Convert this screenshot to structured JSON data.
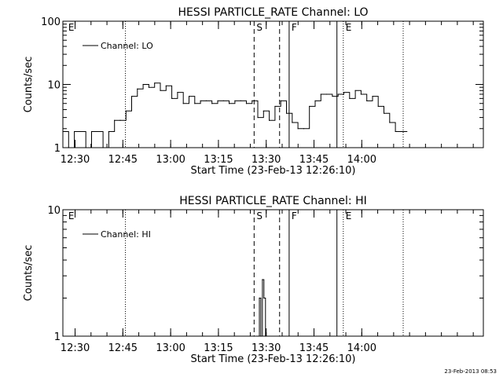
{
  "footer": {
    "stamp": "23-Feb-2013 08:53"
  },
  "chart_data": [
    {
      "type": "line",
      "title": "HESSI PARTICLE_RATE Channel: LO",
      "xlabel": "Start Time (23-Feb-13 12:26:10)",
      "ylabel": "Counts/sec",
      "yscale": "log",
      "xlim": [
        0,
        2.2
      ],
      "ylim": [
        1,
        100
      ],
      "xticks": [
        0.0639,
        0.3139,
        0.5639,
        0.8139,
        1.0639,
        1.3139,
        1.5639
      ],
      "xtick_labels": [
        "12:30",
        "12:45",
        "13:00",
        "13:15",
        "13:30",
        "13:45",
        "14:00"
      ],
      "yticks": [
        1,
        10,
        100
      ],
      "ytick_labels": [
        "1",
        "10",
        "100"
      ],
      "legend": {
        "label": "Channel: LO",
        "position": "top-left"
      },
      "markers": [
        {
          "x": 0.016,
          "label": "E",
          "style": "none"
        },
        {
          "x": 0.3272,
          "label": "",
          "style": "dotted"
        },
        {
          "x": 1.0006,
          "label": "S",
          "style": "dashed"
        },
        {
          "x": 1.1339,
          "label": "",
          "style": "dashed"
        },
        {
          "x": 1.1839,
          "label": "F",
          "style": "solid"
        },
        {
          "x": 1.4339,
          "label": "",
          "style": "solid"
        },
        {
          "x": 1.4672,
          "label": "E",
          "style": "dotted"
        },
        {
          "x": 1.7806,
          "label": "",
          "style": "dotted"
        }
      ],
      "series": [
        {
          "name": "Channel: LO",
          "x": [
            0.0,
            0.03,
            0.06,
            0.09,
            0.12,
            0.15,
            0.18,
            0.21,
            0.24,
            0.27,
            0.3,
            0.33,
            0.36,
            0.39,
            0.42,
            0.45,
            0.48,
            0.51,
            0.54,
            0.57,
            0.6,
            0.63,
            0.66,
            0.69,
            0.72,
            0.75,
            0.78,
            0.81,
            0.84,
            0.87,
            0.9,
            0.93,
            0.96,
            0.99,
            1.02,
            1.05,
            1.08,
            1.11,
            1.14,
            1.17,
            1.2,
            1.23,
            1.26,
            1.29,
            1.32,
            1.35,
            1.38,
            1.41,
            1.44,
            1.47,
            1.5,
            1.53,
            1.56,
            1.59,
            1.62,
            1.65,
            1.68,
            1.71,
            1.74,
            1.77,
            1.8
          ],
          "y": [
            1.8,
            1,
            1.8,
            1.8,
            1,
            1.8,
            1.8,
            1,
            1.8,
            2.7,
            2.7,
            3.8,
            6.5,
            8.5,
            10,
            9,
            10.5,
            8,
            9.5,
            6,
            7.5,
            5,
            6.5,
            5,
            5.5,
            5.5,
            5,
            5.5,
            5.5,
            5,
            5.5,
            5.5,
            5,
            5.5,
            3,
            3.8,
            2.7,
            4.5,
            5.5,
            3.5,
            2.5,
            2,
            2,
            4.5,
            5.5,
            7,
            7,
            6.5,
            7,
            7.5,
            6,
            8,
            7,
            5.5,
            6.5,
            4.5,
            3.5,
            2.5,
            1.8,
            1.8,
            1.8
          ]
        }
      ]
    },
    {
      "type": "line",
      "title": "HESSI PARTICLE_RATE Channel: HI",
      "xlabel": "Start Time (23-Feb-13 12:26:10)",
      "ylabel": "Counts/sec",
      "yscale": "log",
      "xlim": [
        0,
        2.2
      ],
      "ylim": [
        1,
        10
      ],
      "xticks": [
        0.0639,
        0.3139,
        0.5639,
        0.8139,
        1.0639,
        1.3139,
        1.5639
      ],
      "xtick_labels": [
        "12:30",
        "12:45",
        "13:00",
        "13:15",
        "13:30",
        "13:45",
        "14:00"
      ],
      "yticks": [
        1,
        10
      ],
      "ytick_labels": [
        "1",
        "10"
      ],
      "legend": {
        "label": "Channel: HI",
        "position": "top-left"
      },
      "markers": [
        {
          "x": 0.016,
          "label": "E",
          "style": "none"
        },
        {
          "x": 0.3272,
          "label": "",
          "style": "dotted"
        },
        {
          "x": 1.0006,
          "label": "S",
          "style": "dashed"
        },
        {
          "x": 1.1339,
          "label": "",
          "style": "dashed"
        },
        {
          "x": 1.1839,
          "label": "F",
          "style": "solid"
        },
        {
          "x": 1.4339,
          "label": "",
          "style": "solid"
        },
        {
          "x": 1.4672,
          "label": "E",
          "style": "dotted"
        },
        {
          "x": 1.7806,
          "label": "",
          "style": "dotted"
        }
      ],
      "series": [
        {
          "name": "Channel: HI",
          "x": [
            1.02,
            1.028,
            1.036,
            1.044,
            1.052,
            1.06
          ],
          "y": [
            1,
            2,
            1,
            2.8,
            2,
            1
          ]
        }
      ]
    }
  ]
}
